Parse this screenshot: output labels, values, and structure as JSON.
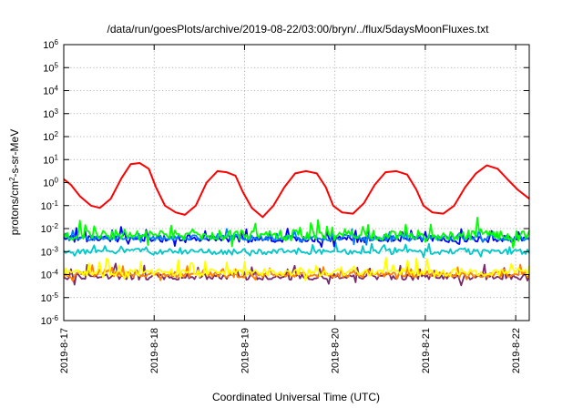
{
  "chart_data": {
    "type": "line",
    "title": "/data/run/goesPlots/archive/2019-08-22/03:00/bryn/../flux/5daysMoonFluxes.txt",
    "xlabel": "Coordinated Universal Time (UTC)",
    "ylabel": {
      "base": "protons/cm",
      "sup": "2",
      "rest": "-s-sr-MeV"
    },
    "yscale": "log",
    "ylim": [
      -6,
      6
    ],
    "xlim": [
      0,
      5.15
    ],
    "grid": true,
    "x_ticks": [
      {
        "label": "2019-8-17",
        "value": 0
      },
      {
        "label": "2019-8-18",
        "value": 1
      },
      {
        "label": "2019-8-19",
        "value": 2
      },
      {
        "label": "2019-8-20",
        "value": 3
      },
      {
        "label": "2019-8-21",
        "value": 4
      },
      {
        "label": "2019-8-22",
        "value": 5
      }
    ],
    "y_ticks": [
      {
        "base": "10",
        "exp": "6",
        "value": 6
      },
      {
        "base": "10",
        "exp": "5",
        "value": 5
      },
      {
        "base": "10",
        "exp": "4",
        "value": 4
      },
      {
        "base": "10",
        "exp": "3",
        "value": 3
      },
      {
        "base": "10",
        "exp": "2",
        "value": 2
      },
      {
        "base": "10",
        "exp": "1",
        "value": 1
      },
      {
        "base": "10",
        "exp": "0",
        "value": 0
      },
      {
        "base": "10",
        "exp": "-1",
        "value": -1
      },
      {
        "base": "10",
        "exp": "-2",
        "value": -2
      },
      {
        "base": "10",
        "exp": "-3",
        "value": -3
      },
      {
        "base": "10",
        "exp": "-4",
        "value": -4
      },
      {
        "base": "10",
        "exp": "-5",
        "value": -5
      },
      {
        "base": "10",
        "exp": "-6",
        "value": -6
      }
    ],
    "series": [
      {
        "color": "#ff0000",
        "kind": "red",
        "x": [
          0,
          0.08,
          0.18,
          0.3,
          0.4,
          0.52,
          0.64,
          0.74,
          0.84,
          0.94,
          1.02,
          1.12,
          1.24,
          1.34,
          1.46,
          1.58,
          1.7,
          1.8,
          1.9,
          1.98,
          2.08,
          2.2,
          2.32,
          2.44,
          2.56,
          2.68,
          2.8,
          2.9,
          2.98,
          3.08,
          3.2,
          3.32,
          3.44,
          3.56,
          3.68,
          3.8,
          3.9,
          3.98,
          4.08,
          4.2,
          4.32,
          4.44,
          4.56,
          4.68,
          4.8,
          4.92,
          5.02,
          5.15
        ],
        "y": [
          0.15,
          -0.1,
          -0.6,
          -1.0,
          -1.1,
          -0.7,
          0.2,
          0.8,
          0.85,
          0.6,
          -0.2,
          -1.0,
          -1.3,
          -1.4,
          -1.0,
          0.0,
          0.5,
          0.45,
          0.3,
          -0.4,
          -1.1,
          -1.5,
          -1.0,
          -0.2,
          0.4,
          0.5,
          0.4,
          -0.2,
          -1.0,
          -1.3,
          -1.35,
          -0.9,
          -0.1,
          0.45,
          0.5,
          0.35,
          -0.3,
          -1.0,
          -1.3,
          -1.35,
          -1.0,
          -0.2,
          0.4,
          0.75,
          0.6,
          0.1,
          -0.3,
          -0.7
        ]
      },
      {
        "color": "#00ff00",
        "kind": "green",
        "base": -2.3,
        "amp": 0.45,
        "spikes": 0.6
      },
      {
        "color": "#0080ff",
        "kind": "lightblue",
        "base": -2.4,
        "amp": 0.25,
        "spikes": 0.35
      },
      {
        "color": "#0000ff",
        "kind": "blue",
        "base": -2.45,
        "amp": 0.3,
        "spikes": 0.5
      },
      {
        "color": "#00c8c8",
        "kind": "cyan",
        "base": -3.0,
        "amp": 0.25,
        "spikes": 0.3
      },
      {
        "color": "#ffff00",
        "kind": "yellow",
        "base": -3.9,
        "amp": 0.3,
        "spikes": 0.6
      },
      {
        "color": "#ff8000",
        "kind": "orange",
        "base": -4.0,
        "amp": 0.25,
        "spikes": 0.4
      },
      {
        "color": "#7a2a6a",
        "kind": "purple",
        "base": -4.1,
        "amp": 0.25,
        "spikes": 0.6
      }
    ]
  }
}
